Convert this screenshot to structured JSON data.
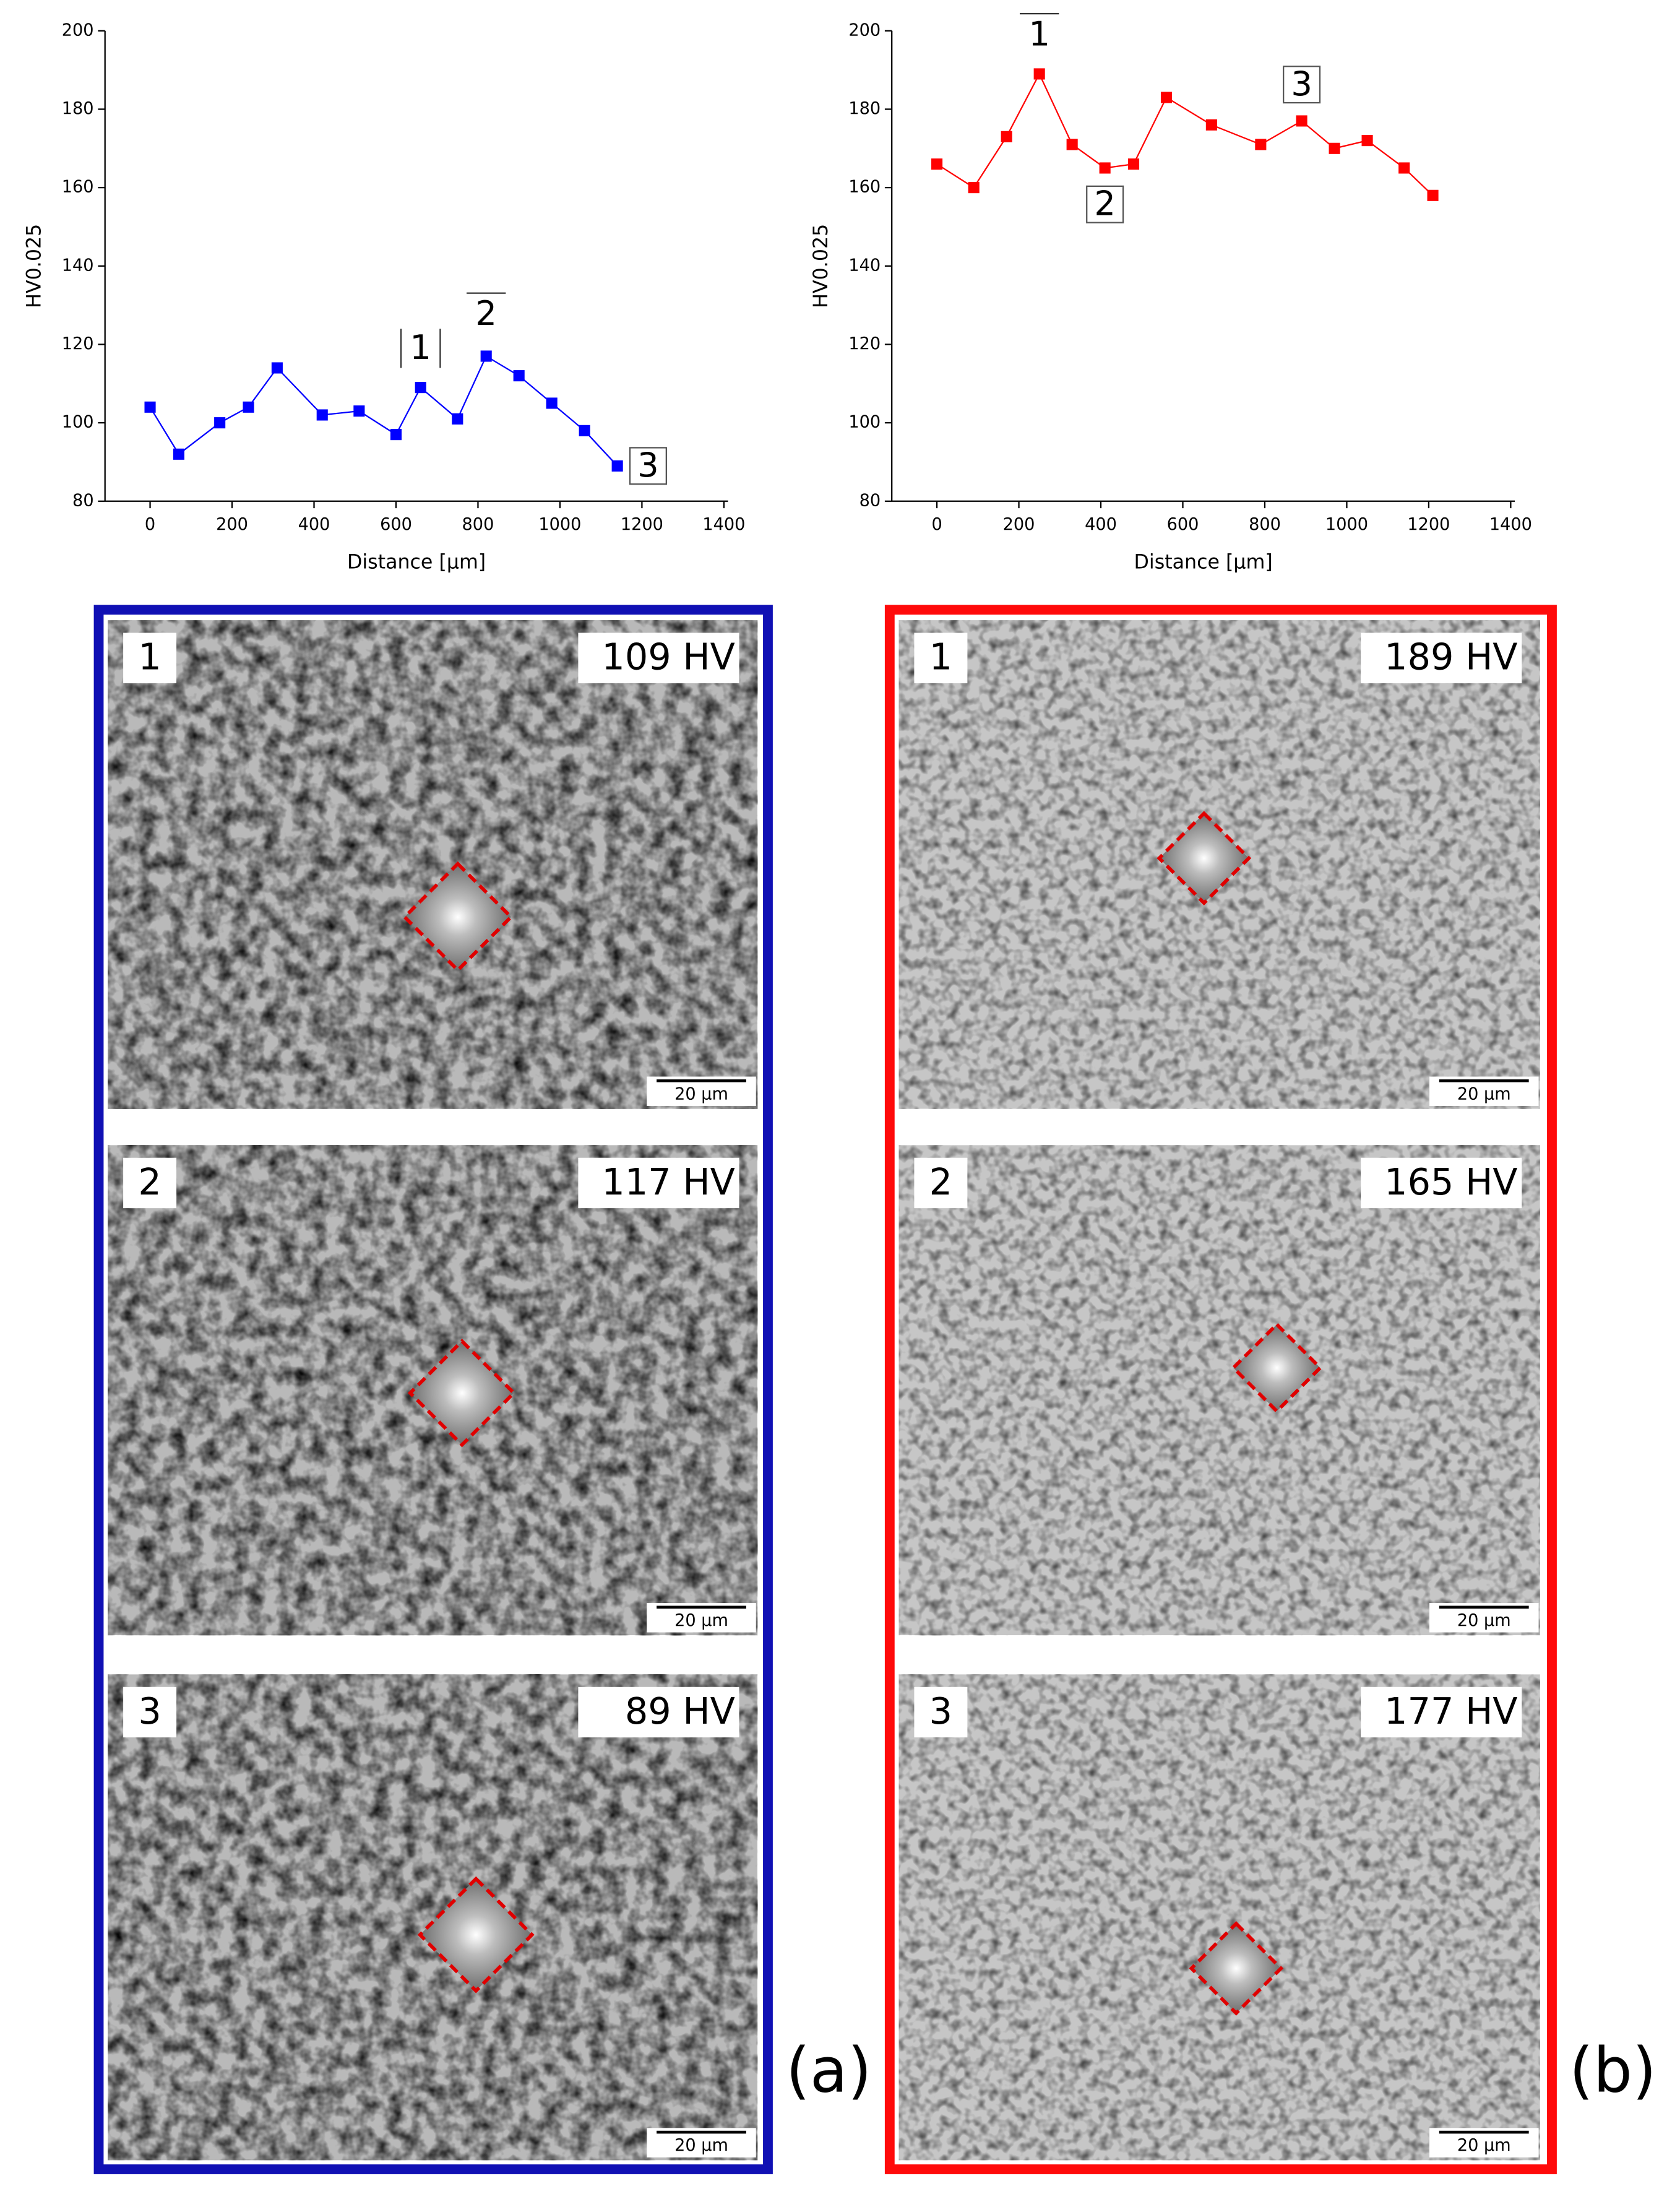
{
  "chart_data": [
    {
      "type": "line",
      "xlabel": "Distance [µm]",
      "ylabel": "HV0.025",
      "x": [
        0,
        70,
        170,
        240,
        310,
        420,
        510,
        600,
        660,
        750,
        820,
        900,
        980,
        1060,
        1140
      ],
      "series": [
        {
          "color": "#0000ff",
          "values": [
            104,
            92,
            100,
            104,
            114,
            102,
            103,
            97,
            109,
            101,
            117,
            112,
            105,
            98,
            89
          ]
        }
      ],
      "xlim": [
        -110,
        1410
      ],
      "ylim": [
        80,
        200
      ],
      "xticks": [
        0,
        200,
        400,
        600,
        800,
        1000,
        1200,
        1400
      ],
      "yticks": [
        80,
        100,
        120,
        140,
        160,
        180,
        200
      ],
      "annotations": [
        {
          "text": "1",
          "x": 660,
          "y": 109
        },
        {
          "text": "2",
          "x": 820,
          "y": 117
        },
        {
          "text": "3",
          "x": 1140,
          "y": 89
        }
      ]
    },
    {
      "type": "line",
      "xlabel": "Distance [µm]",
      "ylabel": "HV0.025",
      "x": [
        0,
        90,
        170,
        250,
        330,
        410,
        480,
        560,
        670,
        790,
        890,
        970,
        1050,
        1140,
        1210
      ],
      "series": [
        {
          "color": "#ff0000",
          "values": [
            166,
            160,
            173,
            189,
            171,
            165,
            166,
            183,
            176,
            171,
            177,
            170,
            172,
            165,
            158
          ]
        }
      ],
      "xlim": [
        -110,
        1410
      ],
      "ylim": [
        80,
        200
      ],
      "xticks": [
        0,
        200,
        400,
        600,
        800,
        1000,
        1200,
        1400
      ],
      "yticks": [
        80,
        100,
        120,
        140,
        160,
        180,
        200
      ],
      "annotations": [
        {
          "text": "1",
          "x": 250,
          "y": 189
        },
        {
          "text": "2",
          "x": 410,
          "y": 165
        },
        {
          "text": "3",
          "x": 890,
          "y": 177
        }
      ]
    }
  ],
  "panels": [
    {
      "label": "(a)",
      "color": "#1010b4",
      "images": [
        {
          "number": "1",
          "hardness": "109 HV",
          "scale": "20 µm"
        },
        {
          "number": "2",
          "hardness": "117 HV",
          "scale": "20 µm"
        },
        {
          "number": "3",
          "hardness": "89 HV",
          "scale": "20 µm"
        }
      ]
    },
    {
      "label": "(b)",
      "color": "#ff0a0a",
      "images": [
        {
          "number": "1",
          "hardness": "189 HV",
          "scale": "20 µm"
        },
        {
          "number": "2",
          "hardness": "165 HV",
          "scale": "20 µm"
        },
        {
          "number": "3",
          "hardness": "177 HV",
          "scale": "20 µm"
        }
      ]
    }
  ]
}
